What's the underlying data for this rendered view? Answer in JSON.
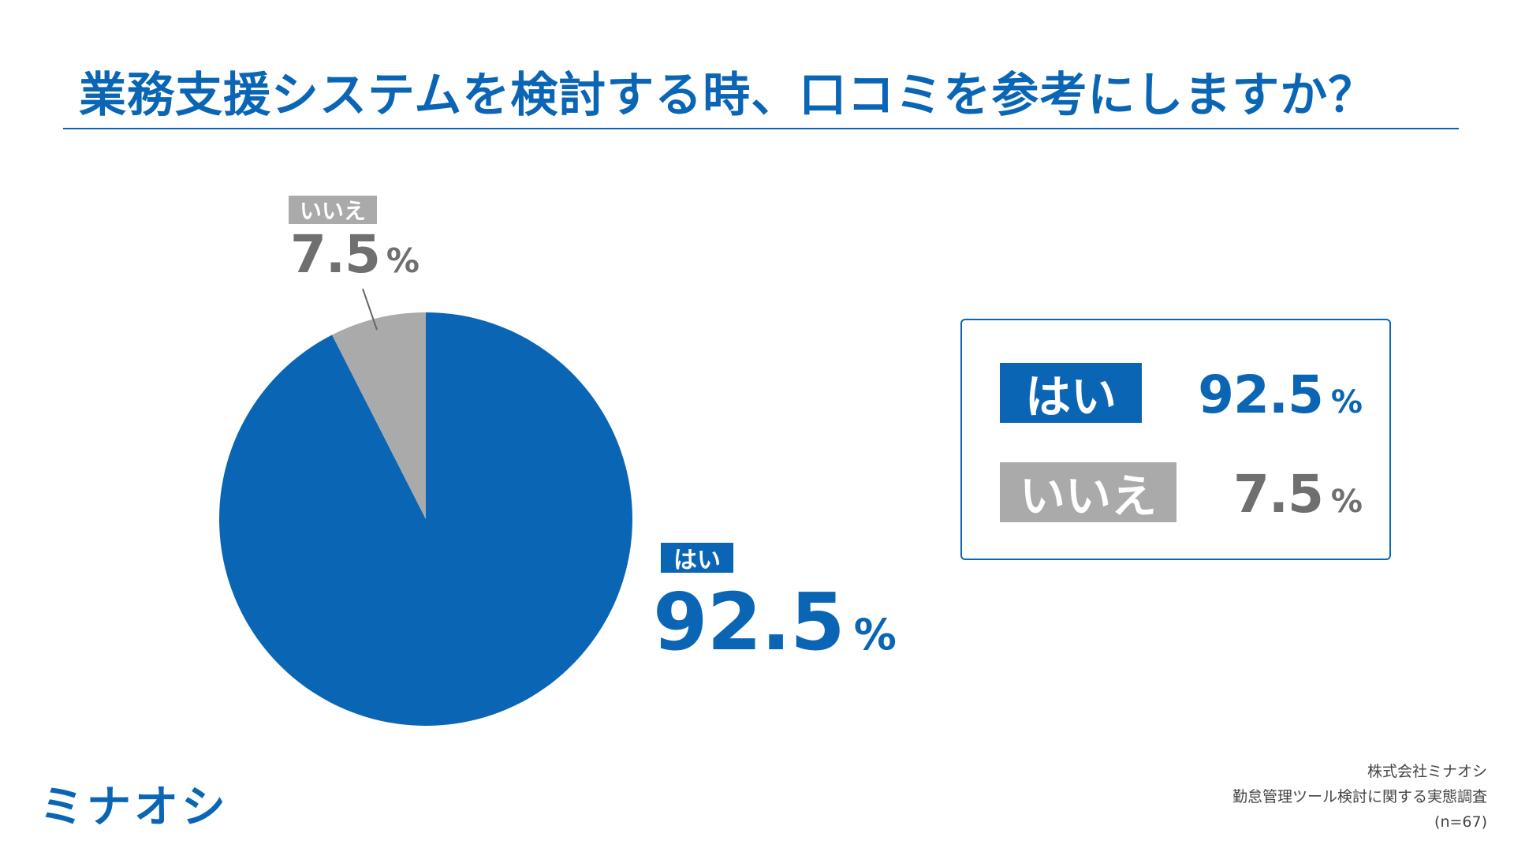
{
  "title": "業務支援システムを検討する時、口コミを参考にしますか？",
  "colors": {
    "accent": "#0a66b5",
    "no": "#aaaaaa",
    "no_text": "#6f6f6f"
  },
  "chart_data": {
    "type": "pie",
    "categories": [
      "はい",
      "いいえ"
    ],
    "values": [
      92.5,
      7.5
    ],
    "unit": "%",
    "colors": [
      "#0a66b5",
      "#aaaaaa"
    ]
  },
  "labels": {
    "yes": {
      "name": "はい",
      "value": "92.5",
      "unit": "%"
    },
    "no": {
      "name": "いいえ",
      "value": "7.5",
      "unit": "%"
    }
  },
  "summary": [
    {
      "name": "はい",
      "value": "92.5",
      "unit": "%"
    },
    {
      "name": "いいえ",
      "value": "7.5",
      "unit": "%"
    }
  ],
  "logo": "ミナオシ",
  "source": {
    "company": "株式会社ミナオシ",
    "survey": "勤怠管理ツール検討に関する実態調査",
    "sample": "(n=67)"
  }
}
